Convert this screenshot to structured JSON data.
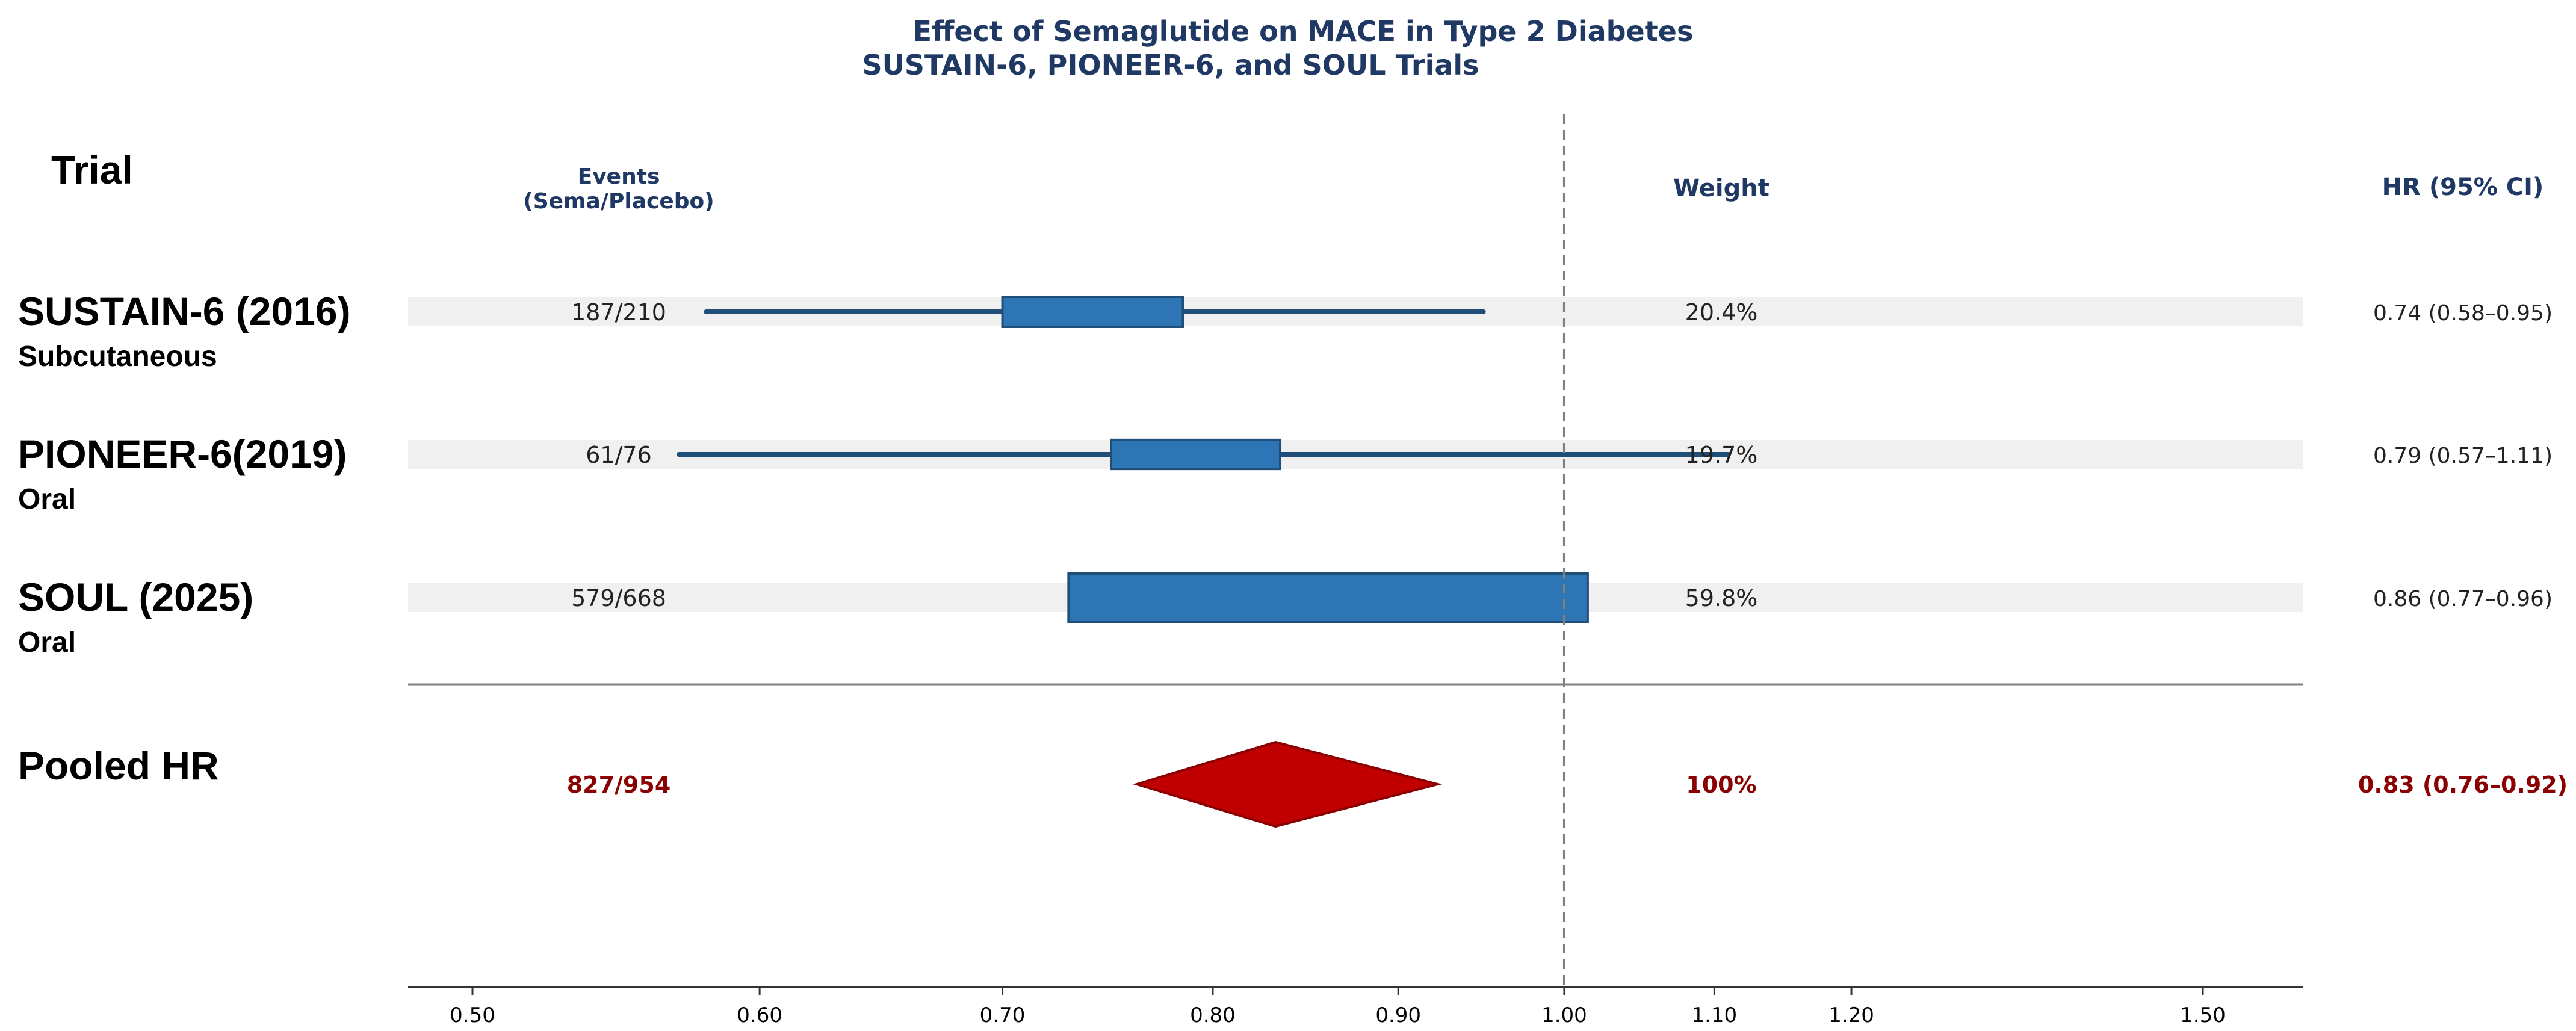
{
  "chart_data": {
    "type": "forest",
    "title": "Effect of Semaglutide on MACE in Type 2 Diabetes",
    "subtitle": "SUSTAIN-6, PIONEER-6, and SOUL Trials",
    "columns": {
      "trial": "Trial",
      "events": [
        "Events",
        "(Sema/Placebo)"
      ],
      "weight": "Weight",
      "hr": "HR (95% CI)"
    },
    "x_axis": {
      "scale": "log",
      "range": [
        0.475,
        1.575
      ],
      "ticks": [
        0.5,
        0.6,
        0.7,
        0.8,
        0.9,
        1.0,
        1.1,
        1.2,
        1.5
      ],
      "tick_labels": [
        "0.50",
        "0.60",
        "0.70",
        "0.80",
        "0.90",
        "1.00",
        "1.10",
        "1.20",
        "1.50"
      ],
      "reference_line": 1.0
    },
    "studies": [
      {
        "name": "SUSTAIN-6 (2016)",
        "route": "Subcutaneous",
        "events": "187/210",
        "weight_label": "20.4%",
        "weight": 20.4,
        "box_low": 0.7,
        "box_high": 0.785,
        "ci_low": 0.58,
        "ci_high": 0.95,
        "hr_label": "0.74 (0.58–0.95)"
      },
      {
        "name": "PIONEER-6(2019)",
        "route": "Oral",
        "events": "61/76",
        "weight_label": "19.7%",
        "weight": 19.7,
        "box_low": 0.75,
        "box_high": 0.835,
        "ci_low": 0.57,
        "ci_high": 1.11,
        "hr_label": "0.79 (0.57–1.11)"
      },
      {
        "name": "SOUL (2025)",
        "route": "Oral",
        "events": "579/668",
        "weight_label": "59.8%",
        "weight": 59.8,
        "box_low": 0.73,
        "box_high": 1.015,
        "ci_low": 0.77,
        "ci_high": 0.96,
        "hr_label": "0.86 (0.77–0.96)"
      }
    ],
    "pooled": {
      "name": "Pooled HR",
      "events": "827/954",
      "weight_label": "100%",
      "hr": 0.83,
      "ci_low": 0.76,
      "ci_high": 0.92,
      "hr_label": "0.83 (0.76–0.92)"
    },
    "colors": {
      "title": "#1f3864",
      "box": "#2e75b6",
      "box_edge": "#1f4e79",
      "ci_line": "#1f4e79",
      "row_band": "#f0f0f0",
      "diamond": "#c00000",
      "diamond_edge": "#8b0000",
      "pooled_text": "#8b0000",
      "ref_line": "#808080",
      "axis": "#333333"
    }
  }
}
